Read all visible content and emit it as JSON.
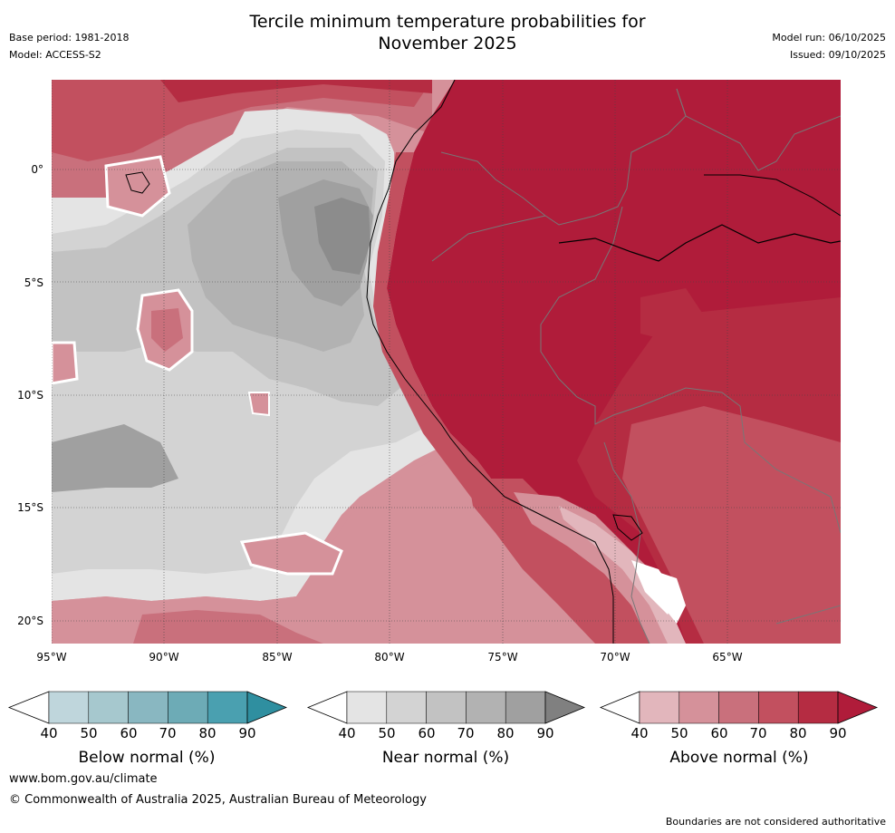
{
  "title": {
    "line1": "Tercile minimum temperature probabilities for",
    "line2": "November 2025"
  },
  "meta": {
    "base_period": "Base period: 1981-2018",
    "model": "Model: ACCESS-S2",
    "model_run": "Model run: 06/10/2025",
    "issued": "Issued: 09/10/2025"
  },
  "axes": {
    "lat_labels": [
      "0°",
      "5°S",
      "10°S",
      "15°S",
      "20°S"
    ],
    "lon_labels": [
      "95°W",
      "90°W",
      "85°W",
      "80°W",
      "75°W",
      "70°W",
      "65°W"
    ]
  },
  "colorbars": {
    "below": {
      "title": "Below normal (%)",
      "ticks": [
        "40",
        "50",
        "60",
        "70",
        "80",
        "90"
      ],
      "colors": [
        "#ffffff",
        "#bfd6dc",
        "#a6c8ce",
        "#89b7c1",
        "#6dabb6",
        "#4aa0b0",
        "#2f8fa0"
      ]
    },
    "near": {
      "title": "Near normal (%)",
      "ticks": [
        "40",
        "50",
        "60",
        "70",
        "80",
        "90"
      ],
      "colors": [
        "#ffffff",
        "#e4e4e4",
        "#d3d3d3",
        "#c2c2c2",
        "#b2b2b2",
        "#a0a0a0",
        "#808080"
      ]
    },
    "above": {
      "title": "Above normal (%)",
      "ticks": [
        "40",
        "50",
        "60",
        "70",
        "80",
        "90"
      ],
      "colors": [
        "#ffffff",
        "#e2b6bc",
        "#d5919a",
        "#c9707c",
        "#c2505f",
        "#b52c42",
        "#b01c3a"
      ]
    }
  },
  "footer": {
    "url": "www.bom.gov.au/climate",
    "copyright": "© Commonwealth of Australia 2025, Australian Bureau of Meteorology",
    "note": "Boundaries are not considered authoritative"
  }
}
